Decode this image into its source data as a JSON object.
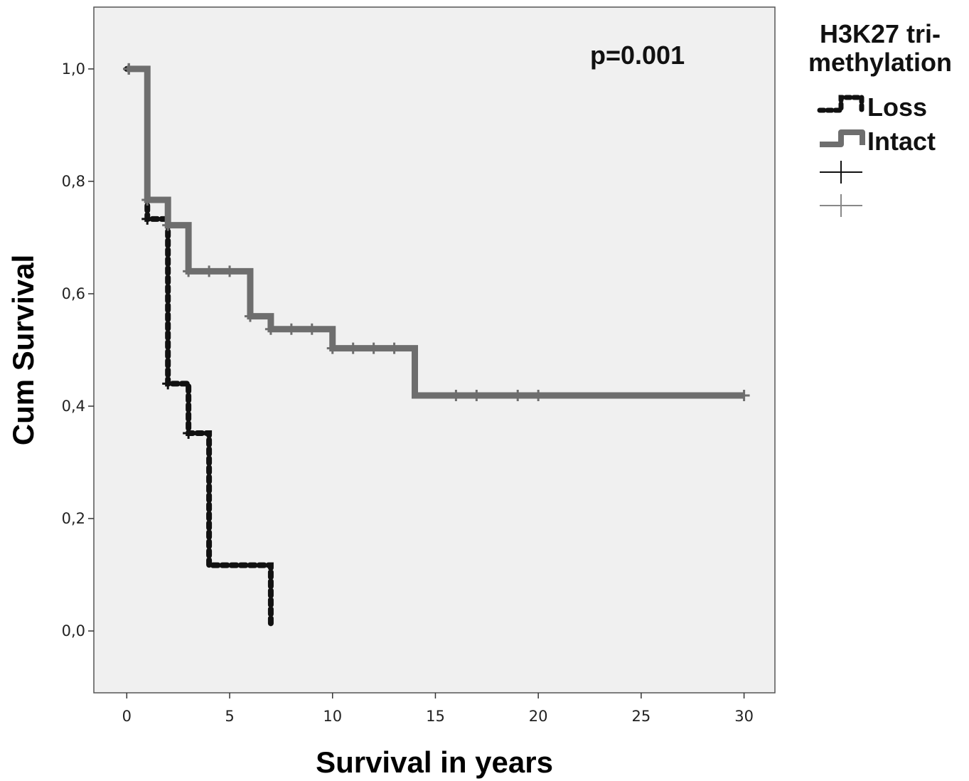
{
  "chart_data": {
    "type": "line",
    "title": "",
    "xlabel": "Survival in years",
    "ylabel": "Cum Survival",
    "xlim": [
      -1.6,
      31.5
    ],
    "ylim": [
      -0.11,
      1.11
    ],
    "x_ticks": [
      0,
      5,
      10,
      15,
      20,
      25,
      30
    ],
    "y_ticks": [
      0.0,
      0.2,
      0.4,
      0.6,
      0.8,
      1.0
    ],
    "x_tick_labels": [
      "0",
      "5",
      "10",
      "15",
      "20",
      "25",
      "30"
    ],
    "y_tick_labels": [
      "0,0",
      "0,2",
      "0,4",
      "0,6",
      "0,8",
      "1,0"
    ],
    "grid": false,
    "annotation": "p=0.001",
    "legend": {
      "title_lines": [
        "H3K27 tri-",
        "methylation"
      ],
      "placement": "right",
      "entries": [
        "Loss",
        "Intact"
      ]
    },
    "series": [
      {
        "name": "Loss",
        "style": "dotted",
        "color": "#111111",
        "steps": [
          [
            0,
            1.0
          ],
          [
            1,
            0.733
          ],
          [
            2,
            0.44
          ],
          [
            3,
            0.352
          ],
          [
            4,
            0.117
          ],
          [
            7,
            0.01
          ]
        ],
        "censored": [
          [
            0.1,
            1.0
          ],
          [
            1.0,
            0.733
          ],
          [
            2.0,
            0.44
          ],
          [
            3.0,
            0.352
          ]
        ]
      },
      {
        "name": "Intact",
        "style": "solid",
        "color": "#6e6e6e",
        "steps": [
          [
            0,
            1.0
          ],
          [
            1,
            0.767
          ],
          [
            2,
            0.722
          ],
          [
            3,
            0.64
          ],
          [
            6,
            0.56
          ],
          [
            7,
            0.537
          ],
          [
            10,
            0.503
          ],
          [
            14,
            0.419
          ]
        ],
        "end_x": 30,
        "censored": [
          [
            0.1,
            1.0
          ],
          [
            1.0,
            0.767
          ],
          [
            2.0,
            0.722
          ],
          [
            3.0,
            0.64
          ],
          [
            4.0,
            0.64
          ],
          [
            5.0,
            0.64
          ],
          [
            6.0,
            0.56
          ],
          [
            7.0,
            0.537
          ],
          [
            8.0,
            0.537
          ],
          [
            9.0,
            0.537
          ],
          [
            10.0,
            0.503
          ],
          [
            11.0,
            0.503
          ],
          [
            12.0,
            0.503
          ],
          [
            13.0,
            0.503
          ],
          [
            16.0,
            0.419
          ],
          [
            17.0,
            0.419
          ],
          [
            19.0,
            0.419
          ],
          [
            20.0,
            0.419
          ],
          [
            30.0,
            0.419
          ]
        ]
      }
    ]
  }
}
